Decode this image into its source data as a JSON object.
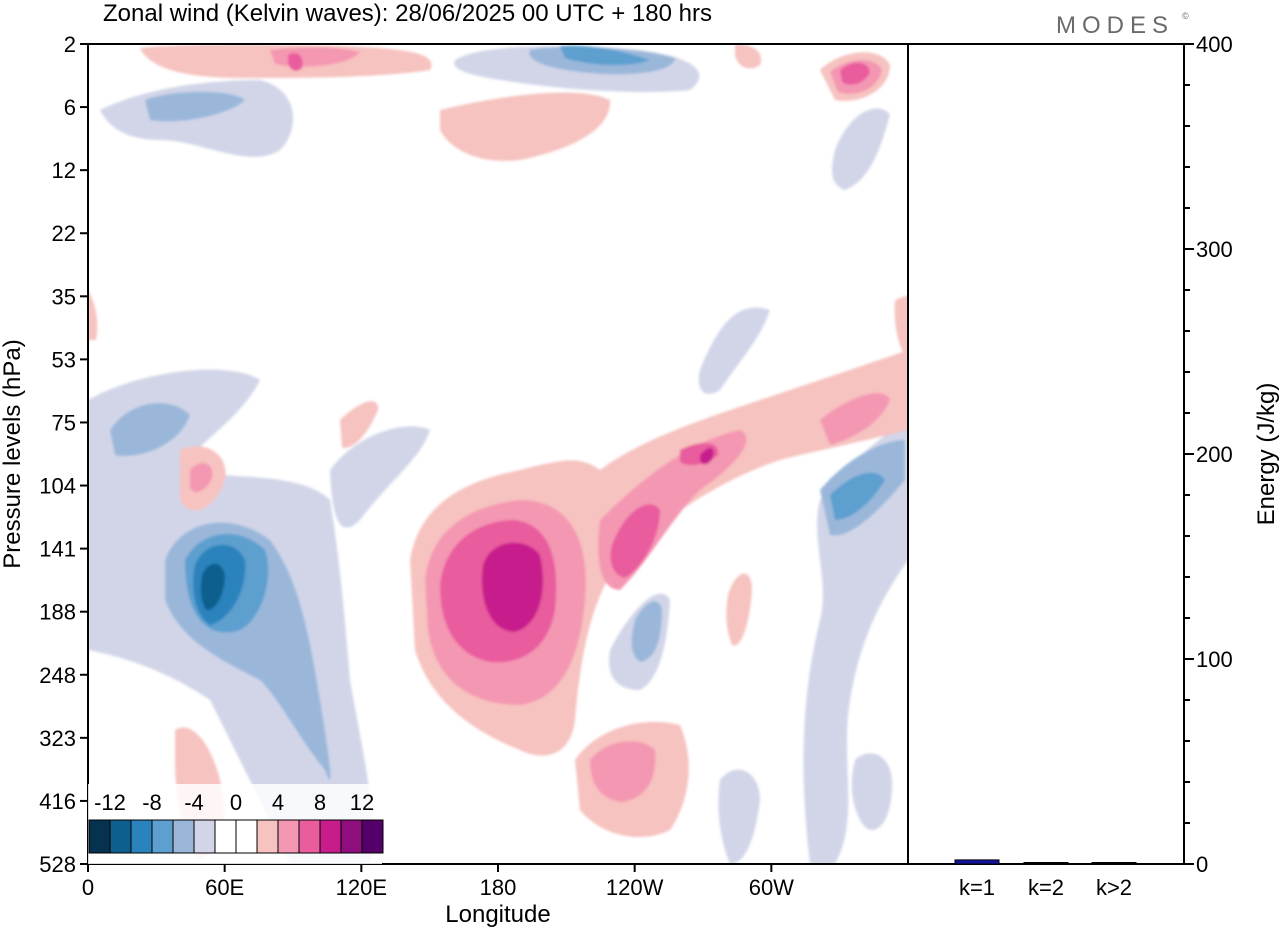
{
  "title": "Zonal wind (Kelvin waves):  28/06/2025  00 UTC  + 180 hrs",
  "brand": "MODES",
  "brand_mark": "©",
  "colors": {
    "axis": "#000000",
    "energy_bar": "#1414a0",
    "palette": [
      "#05324f",
      "#0d5f8d",
      "#2a83bd",
      "#5d9fcf",
      "#9ab7da",
      "#d2d5e8",
      "#ffffff",
      "#ffffff",
      "#f6c3c0",
      "#f497b2",
      "#e95c9e",
      "#c71d8b",
      "#8e0e7e",
      "#55006a"
    ]
  },
  "chart_data": [
    {
      "type": "heatmap",
      "title": "Zonal wind (Kelvin waves):  28/06/2025  00 UTC  + 180 hrs",
      "xlabel": "Longitude",
      "ylabel": "Pressure levels (hPa)",
      "x_ticks": [
        "0",
        "60E",
        "120E",
        "180",
        "120W",
        "60W"
      ],
      "x_tick_values": [
        0,
        60,
        120,
        180,
        240,
        300
      ],
      "xlim": [
        0,
        360
      ],
      "y_ticks": [
        "2",
        "6",
        "12",
        "22",
        "35",
        "53",
        "75",
        "104",
        "141",
        "188",
        "248",
        "323",
        "416",
        "528"
      ],
      "colorbar_labels": [
        "-12",
        "-8",
        "-4",
        "0",
        "4",
        "8",
        "12"
      ],
      "features": [
        {
          "lon": 55,
          "level": 141,
          "value": -13,
          "sign": "negative"
        },
        {
          "lon": 20,
          "level": 75,
          "value": -7,
          "sign": "negative"
        },
        {
          "lon": 45,
          "level": 6,
          "value": -7,
          "sign": "negative"
        },
        {
          "lon": 210,
          "level": 2,
          "value": -10,
          "sign": "negative"
        },
        {
          "lon": 325,
          "level": 104,
          "value": -8,
          "sign": "negative"
        },
        {
          "lon": 245,
          "level": 188,
          "value": -5,
          "sign": "negative"
        },
        {
          "lon": 183,
          "level": 141,
          "value": 11,
          "sign": "positive"
        },
        {
          "lon": 233,
          "level": 141,
          "value": 8,
          "sign": "positive"
        },
        {
          "lon": 275,
          "level": 104,
          "value": 8,
          "sign": "positive"
        },
        {
          "lon": 340,
          "level": 75,
          "value": 7,
          "sign": "positive"
        },
        {
          "lon": 338,
          "level": 6,
          "value": 9,
          "sign": "positive"
        },
        {
          "lon": 232,
          "level": 323,
          "value": 6,
          "sign": "positive"
        },
        {
          "lon": 92,
          "level": 2,
          "value": 7,
          "sign": "positive"
        },
        {
          "lon": 52,
          "level": 104,
          "value": 5,
          "sign": "positive"
        }
      ]
    },
    {
      "type": "bar",
      "ylabel": "Energy (J/kg)",
      "ylim": [
        0,
        400
      ],
      "y_ticks": [
        "0",
        "100",
        "200",
        "300",
        "400"
      ],
      "categories": [
        "k=1",
        "k=2",
        "k>2"
      ],
      "values": [
        2,
        0.5,
        0.5
      ]
    }
  ]
}
